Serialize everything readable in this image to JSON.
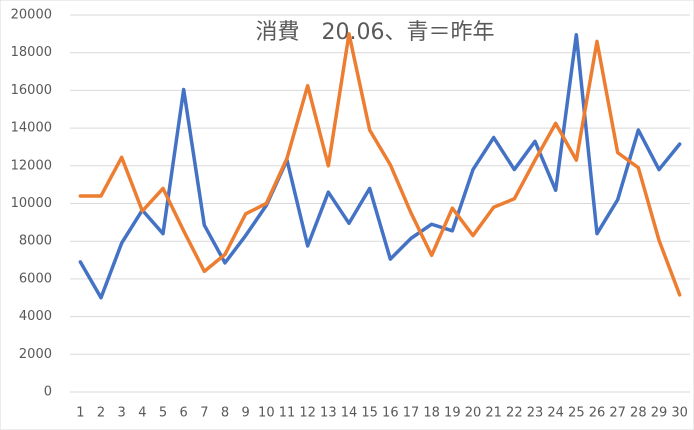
{
  "chart_data": {
    "type": "line",
    "title": "消費　20.06、青＝昨年",
    "categories": [
      "1",
      "2",
      "3",
      "4",
      "5",
      "6",
      "7",
      "8",
      "9",
      "10",
      "11",
      "12",
      "13",
      "14",
      "15",
      "16",
      "17",
      "18",
      "19",
      "20",
      "21",
      "22",
      "23",
      "24",
      "25",
      "26",
      "27",
      "28",
      "29",
      "30"
    ],
    "series": [
      {
        "color": "#4472c4",
        "values": [
          6900,
          5000,
          7900,
          9650,
          8400,
          16050,
          8850,
          6850,
          8300,
          9900,
          12300,
          7750,
          10600,
          8950,
          10800,
          7050,
          8150,
          8900,
          8550,
          11800,
          13500,
          11800,
          13300,
          10700,
          18950,
          8400,
          10200,
          13900,
          11800,
          13150
        ]
      },
      {
        "color": "#ed7d31",
        "values": [
          10400,
          10400,
          12450,
          9600,
          10800,
          8550,
          6400,
          7300,
          9450,
          10000,
          12400,
          16250,
          12000,
          19000,
          13900,
          12050,
          9500,
          7250,
          9750,
          8300,
          9800,
          10250,
          12300,
          14250,
          12300,
          18600,
          12700,
          11900,
          8050,
          5150
        ]
      }
    ],
    "ylim": [
      0,
      20000
    ],
    "yticks": [
      0,
      2000,
      4000,
      6000,
      8000,
      10000,
      12000,
      14000,
      16000,
      18000,
      20000
    ],
    "grid": true
  }
}
